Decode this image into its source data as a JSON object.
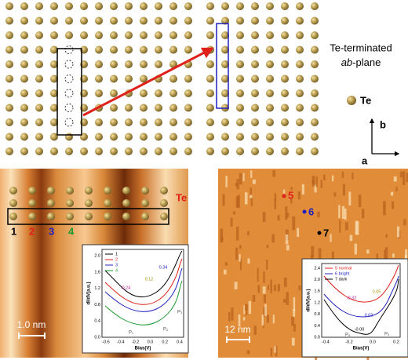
{
  "top": {
    "label_line1": "Te-terminated",
    "label_line2_italic": "ab",
    "label_line2_rest": "-plane",
    "legend": "Te",
    "axis_b": "b",
    "axis_a": "a"
  },
  "stm_left": {
    "element": "Te",
    "markers": [
      "1",
      "2",
      "3",
      "4"
    ],
    "scale_bar": "1.0 nm",
    "inset": {
      "legend": [
        "1",
        "2",
        "3",
        "4"
      ],
      "y_label": "dI/dV(a.u.)",
      "x_label": "Bias(V)",
      "yticks": [
        "0.0",
        "0.4",
        "0.8",
        "1.2",
        "1.6",
        "2.0"
      ],
      "xticks": [
        "-0.6",
        "-0.4",
        "-0.2",
        "0.0",
        "0.2",
        "0.4"
      ],
      "annotations": [
        "-0.24",
        "0.12",
        "0.34"
      ],
      "peaks": [
        "P₁",
        "P₂",
        "P₃"
      ]
    }
  },
  "stm_right": {
    "markers": [
      "5",
      "6",
      "7"
    ],
    "scale_bar": "12 nm",
    "inset": {
      "legend": [
        "5 normal",
        "6 bright",
        "7 dark"
      ],
      "y_label": "dI/dV(a.u.)",
      "x_label": "Bias(V)",
      "yticks": [
        "0.0",
        "0.4",
        "0.8",
        "1.2",
        "1.6",
        "2.0",
        "2.4"
      ],
      "xticks": [
        "-0.4",
        "-0.2",
        "0.0",
        "0.2"
      ],
      "annotations": [
        "-0.32",
        "0.05",
        "0.02",
        "-0.00"
      ],
      "peaks": [
        "P₄",
        "P₅"
      ]
    }
  }
}
